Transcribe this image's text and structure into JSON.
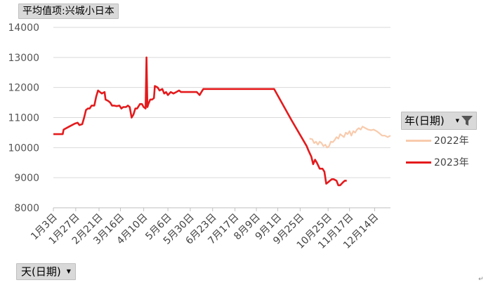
{
  "value_field_button": "平均值项:兴城小日本",
  "axis_field_button": "天(日期)",
  "legend": {
    "header": "年(日期)",
    "items": [
      {
        "label": "2022年",
        "color": "#f8cbad"
      },
      {
        "label": "2023年",
        "color": "#e41a1c"
      }
    ]
  },
  "icons": {
    "dropdown": "chevron-down-icon",
    "filter": "filter-icon"
  },
  "chart_data": {
    "type": "line",
    "title": "平均值项:兴城小日本",
    "xlabel": "天(日期)",
    "ylabel": "",
    "ylim": [
      8000,
      14000
    ],
    "yticks": [
      8000,
      9000,
      10000,
      11000,
      12000,
      13000,
      14000
    ],
    "x_domain": [
      "01-03",
      "12-31"
    ],
    "x_tick_labels": [
      "1月3日",
      "1月27日",
      "2月21日",
      "3月16日",
      "4月10日",
      "5月6日",
      "5月30日",
      "6月23日",
      "7月17日",
      "8月9日",
      "9月1日",
      "9月25日",
      "10月25日",
      "11月17日",
      "12月14日"
    ],
    "x_tick_dates": [
      "01-03",
      "01-27",
      "02-21",
      "03-16",
      "04-10",
      "05-06",
      "05-30",
      "06-23",
      "07-17",
      "08-09",
      "09-01",
      "09-25",
      "10-25",
      "11-17",
      "12-14"
    ],
    "grid": "horizontal",
    "legend_position": "right",
    "series": [
      {
        "name": "2022年",
        "color": "#f8cbad",
        "points": [
          [
            "10-05",
            10300
          ],
          [
            "10-08",
            10280
          ],
          [
            "10-10",
            10150
          ],
          [
            "10-12",
            10200
          ],
          [
            "10-14",
            10100
          ],
          [
            "10-16",
            10200
          ],
          [
            "10-18",
            10150
          ],
          [
            "10-20",
            10050
          ],
          [
            "10-22",
            10100
          ],
          [
            "10-24",
            10000
          ],
          [
            "10-26",
            10050
          ],
          [
            "10-28",
            10200
          ],
          [
            "10-30",
            10180
          ],
          [
            "11-01",
            10250
          ],
          [
            "11-03",
            10350
          ],
          [
            "11-05",
            10300
          ],
          [
            "11-07",
            10450
          ],
          [
            "11-09",
            10400
          ],
          [
            "11-11",
            10350
          ],
          [
            "11-13",
            10500
          ],
          [
            "11-15",
            10450
          ],
          [
            "11-17",
            10550
          ],
          [
            "11-19",
            10400
          ],
          [
            "11-21",
            10550
          ],
          [
            "11-23",
            10500
          ],
          [
            "11-25",
            10600
          ],
          [
            "11-27",
            10650
          ],
          [
            "11-29",
            10600
          ],
          [
            "12-01",
            10700
          ],
          [
            "12-04",
            10650
          ],
          [
            "12-07",
            10600
          ],
          [
            "12-10",
            10580
          ],
          [
            "12-13",
            10600
          ],
          [
            "12-16",
            10550
          ],
          [
            "12-19",
            10480
          ],
          [
            "12-22",
            10400
          ],
          [
            "12-25",
            10400
          ],
          [
            "12-28",
            10350
          ],
          [
            "12-31",
            10400
          ]
        ]
      },
      {
        "name": "2023年",
        "color": "#e41a1c",
        "points": [
          [
            "01-03",
            10450
          ],
          [
            "01-13",
            10450
          ],
          [
            "01-14",
            10600
          ],
          [
            "01-20",
            10700
          ],
          [
            "01-26",
            10800
          ],
          [
            "01-29",
            10830
          ],
          [
            "01-31",
            10750
          ],
          [
            "02-03",
            10780
          ],
          [
            "02-05",
            11000
          ],
          [
            "02-07",
            11250
          ],
          [
            "02-09",
            11300
          ],
          [
            "02-11",
            11300
          ],
          [
            "02-13",
            11400
          ],
          [
            "02-16",
            11400
          ],
          [
            "02-18",
            11700
          ],
          [
            "02-20",
            11900
          ],
          [
            "02-22",
            11850
          ],
          [
            "02-24",
            11800
          ],
          [
            "02-27",
            11850
          ],
          [
            "02-28",
            11600
          ],
          [
            "03-03",
            11550
          ],
          [
            "03-05",
            11500
          ],
          [
            "03-07",
            11400
          ],
          [
            "03-09",
            11400
          ],
          [
            "03-12",
            11380
          ],
          [
            "03-15",
            11400
          ],
          [
            "03-17",
            11300
          ],
          [
            "03-19",
            11350
          ],
          [
            "03-22",
            11350
          ],
          [
            "03-24",
            11400
          ],
          [
            "03-26",
            11350
          ],
          [
            "03-28",
            11000
          ],
          [
            "03-30",
            11100
          ],
          [
            "04-01",
            11300
          ],
          [
            "04-03",
            11300
          ],
          [
            "04-06",
            11450
          ],
          [
            "04-08",
            11450
          ],
          [
            "04-10",
            11350
          ],
          [
            "04-12",
            11300
          ],
          [
            "04-13",
            13000
          ],
          [
            "04-14",
            11350
          ],
          [
            "04-15",
            11450
          ],
          [
            "04-17",
            11600
          ],
          [
            "04-19",
            11600
          ],
          [
            "04-21",
            11650
          ],
          [
            "04-22",
            12050
          ],
          [
            "04-25",
            12000
          ],
          [
            "04-27",
            11900
          ],
          [
            "04-30",
            11950
          ],
          [
            "05-02",
            11800
          ],
          [
            "05-04",
            11850
          ],
          [
            "05-06",
            11750
          ],
          [
            "05-09",
            11850
          ],
          [
            "05-12",
            11800
          ],
          [
            "05-15",
            11850
          ],
          [
            "05-18",
            11900
          ],
          [
            "05-20",
            11850
          ],
          [
            "05-23",
            11850
          ],
          [
            "05-26",
            11850
          ],
          [
            "05-29",
            11850
          ],
          [
            "06-01",
            11850
          ],
          [
            "06-06",
            11850
          ],
          [
            "06-09",
            11750
          ],
          [
            "06-11",
            11850
          ],
          [
            "06-13",
            11950
          ],
          [
            "06-19",
            11950
          ],
          [
            "07-01",
            11950
          ],
          [
            "07-15",
            11950
          ],
          [
            "07-31",
            11950
          ],
          [
            "08-10",
            11950
          ],
          [
            "08-28",
            11950
          ],
          [
            "09-16",
            10900
          ],
          [
            "10-02",
            10050
          ],
          [
            "10-04",
            9900
          ],
          [
            "10-07",
            9700
          ],
          [
            "10-09",
            9450
          ],
          [
            "10-11",
            9600
          ],
          [
            "10-13",
            9500
          ],
          [
            "10-16",
            9300
          ],
          [
            "10-19",
            9300
          ],
          [
            "10-21",
            9200
          ],
          [
            "10-23",
            8800
          ],
          [
            "10-25",
            8850
          ],
          [
            "10-27",
            8900
          ],
          [
            "10-29",
            8950
          ],
          [
            "10-31",
            8950
          ],
          [
            "11-03",
            8900
          ],
          [
            "11-05",
            8750
          ],
          [
            "11-07",
            8750
          ],
          [
            "11-10",
            8850
          ],
          [
            "11-12",
            8900
          ],
          [
            "11-14",
            8900
          ]
        ]
      }
    ]
  }
}
